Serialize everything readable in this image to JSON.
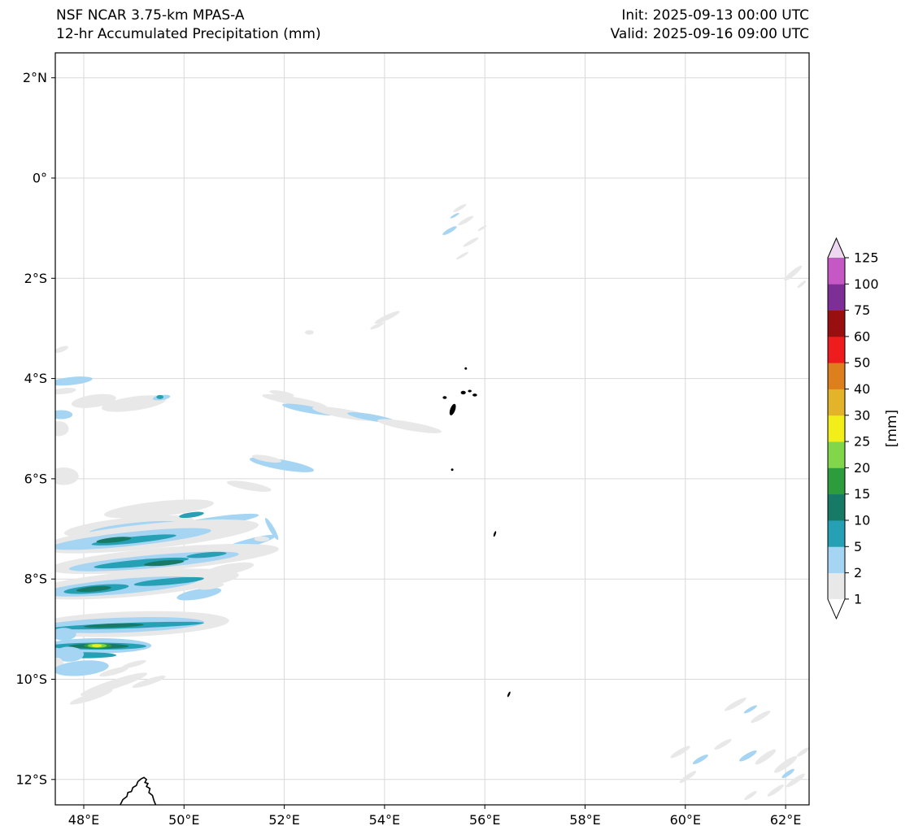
{
  "header": {
    "title_line1": "NSF NCAR 3.75-km MPAS-A",
    "title_line2": "12-hr Accumulated Precipitation (mm)",
    "init_label": "Init: 2025-09-13 00:00 UTC",
    "valid_label": "Valid: 2025-09-16 09:00 UTC"
  },
  "axes": {
    "x_ticks": [
      {
        "lon": 48,
        "label": "48°E"
      },
      {
        "lon": 50,
        "label": "50°E"
      },
      {
        "lon": 52,
        "label": "52°E"
      },
      {
        "lon": 54,
        "label": "54°E"
      },
      {
        "lon": 56,
        "label": "56°E"
      },
      {
        "lon": 58,
        "label": "58°E"
      },
      {
        "lon": 60,
        "label": "60°E"
      },
      {
        "lon": 62,
        "label": "62°E"
      }
    ],
    "y_ticks": [
      {
        "lat": 2,
        "label": "2°N"
      },
      {
        "lat": 0,
        "label": "0°"
      },
      {
        "lat": -2,
        "label": "2°S"
      },
      {
        "lat": -4,
        "label": "4°S"
      },
      {
        "lat": -6,
        "label": "6°S"
      },
      {
        "lat": -8,
        "label": "8°S"
      },
      {
        "lat": -10,
        "label": "10°S"
      },
      {
        "lat": -12,
        "label": "12°S"
      }
    ]
  },
  "colorbar": {
    "unit_label": "[mm]",
    "tick_labels": [
      "1",
      "2",
      "5",
      "10",
      "15",
      "20",
      "25",
      "30",
      "40",
      "50",
      "60",
      "75",
      "100",
      "125"
    ],
    "band_colors": [
      "#e8e8e8",
      "#a5d5f2",
      "#25a0b4",
      "#177a66",
      "#2c9c3c",
      "#81d64a",
      "#f2ee19",
      "#e3b32a",
      "#dd7f1d",
      "#ee1c1c",
      "#990f0f",
      "#7e2f96",
      "#c558c5"
    ],
    "under_color": "#ffffff",
    "over_color": "#eed7f2"
  },
  "chart_data": {
    "type": "heatmap",
    "subtype": "geographic filled-contour precipitation map",
    "title": "NSF NCAR 3.75-km MPAS-A — 12-hr Accumulated Precipitation (mm)",
    "model": "NSF NCAR 3.75-km MPAS-A",
    "variable": "12-hr Accumulated Precipitation",
    "units": "mm",
    "init_time": "2025-09-13 00:00 UTC",
    "valid_time": "2025-09-16 09:00 UTC",
    "lon_range_deg_east": [
      47.4,
      62.5
    ],
    "lat_range_deg": [
      -12.5,
      2.5
    ],
    "contour_levels_mm": [
      1,
      2,
      5,
      10,
      15,
      20,
      25,
      30,
      40,
      50,
      60,
      75,
      100,
      125
    ],
    "legend_position": "right vertical colorbar with pointed over/under extensions",
    "grid": true,
    "max_shaded_value_mm": 30,
    "summary": "Streaky NW–SE bands of light precipitation (1–10 mm) offshore of northern Madagascar between 47–53°E and 4–10°S, with embedded 10–15 mm teal cores and an isolated 25–30 mm maximum near 48.3°E, 9.3°S; scattered light showers near the Seychelles (55–56°E, 0.5–2°S), around 52–55°E 4.5–5°S, and in the far southeast corner (60–62.5°E, 10.5–12.5°S). Coastline of Madagascar's northern tip visible at bottom; small Seychelles islands near 55.5°E, 4.5°S."
  },
  "map": {
    "precip_blobs": [
      [
        47.75,
        -4.05,
        0.85,
        0.16,
        -6,
        1
      ],
      [
        47.6,
        -4.25,
        0.5,
        0.12,
        -6,
        0
      ],
      [
        48.2,
        -4.45,
        0.9,
        0.25,
        -8,
        0
      ],
      [
        49.0,
        -4.5,
        1.3,
        0.28,
        -8,
        0
      ],
      [
        49.55,
        -4.38,
        0.35,
        0.1,
        -8,
        1
      ],
      [
        49.52,
        -4.37,
        0.14,
        0.08,
        0,
        2
      ],
      [
        47.55,
        -4.72,
        0.45,
        0.18,
        0,
        1
      ],
      [
        47.5,
        -5.0,
        0.4,
        0.3,
        0,
        0
      ],
      [
        47.55,
        -3.42,
        0.3,
        0.1,
        -20,
        0
      ],
      [
        52.2,
        -4.45,
        1.3,
        0.16,
        10,
        0
      ],
      [
        52.5,
        -4.62,
        1.1,
        0.14,
        10,
        1
      ],
      [
        53.2,
        -4.7,
        1.3,
        0.18,
        10,
        0
      ],
      [
        53.75,
        -4.78,
        1.0,
        0.13,
        10,
        1
      ],
      [
        54.5,
        -4.95,
        1.3,
        0.17,
        10,
        0
      ],
      [
        51.95,
        -4.3,
        0.5,
        0.1,
        10,
        0
      ],
      [
        51.95,
        -5.72,
        1.3,
        0.2,
        10,
        1
      ],
      [
        51.65,
        -5.6,
        0.6,
        0.12,
        10,
        0
      ],
      [
        51.3,
        -6.15,
        0.9,
        0.16,
        10,
        0
      ],
      [
        47.6,
        -5.95,
        0.6,
        0.35,
        0,
        0
      ],
      [
        52.5,
        -3.08,
        0.18,
        0.09,
        0,
        0
      ],
      [
        54.05,
        -2.78,
        0.55,
        0.1,
        -25,
        0
      ],
      [
        53.85,
        -2.95,
        0.3,
        0.07,
        -25,
        0
      ],
      [
        49.5,
        -6.6,
        2.2,
        0.3,
        -6,
        0
      ],
      [
        48.9,
        -6.95,
        2.6,
        0.35,
        -6,
        0
      ],
      [
        49.0,
        -6.98,
        1.8,
        0.2,
        -6,
        1
      ],
      [
        50.6,
        -6.85,
        1.8,
        0.18,
        -8,
        1
      ],
      [
        50.15,
        -6.72,
        0.5,
        0.1,
        -8,
        2
      ],
      [
        50.9,
        -6.9,
        0.5,
        0.09,
        -8,
        2
      ],
      [
        49.3,
        -7.15,
        4.4,
        0.5,
        -6,
        0
      ],
      [
        48.95,
        -7.2,
        3.2,
        0.28,
        -6,
        1
      ],
      [
        49.0,
        -7.22,
        1.7,
        0.13,
        -6,
        2
      ],
      [
        48.6,
        -7.22,
        0.7,
        0.1,
        -6,
        3
      ],
      [
        51.3,
        -7.28,
        1.1,
        0.16,
        -15,
        1
      ],
      [
        51.75,
        -7.0,
        0.5,
        0.1,
        60,
        1
      ],
      [
        51.55,
        -7.2,
        0.3,
        0.1,
        0,
        0
      ],
      [
        49.6,
        -7.6,
        4.6,
        0.45,
        -5,
        0
      ],
      [
        49.4,
        -7.65,
        3.4,
        0.26,
        -5,
        1
      ],
      [
        49.15,
        -7.68,
        1.9,
        0.14,
        -5,
        2
      ],
      [
        49.6,
        -7.68,
        0.8,
        0.1,
        -5,
        3
      ],
      [
        50.45,
        -7.52,
        0.8,
        0.1,
        -5,
        2
      ],
      [
        50.9,
        -7.8,
        1.0,
        0.2,
        -10,
        0
      ],
      [
        49.0,
        -8.1,
        4.2,
        0.5,
        -5,
        0
      ],
      [
        48.75,
        -8.15,
        3.1,
        0.3,
        -5,
        1
      ],
      [
        48.25,
        -8.2,
        1.3,
        0.16,
        -5,
        2
      ],
      [
        48.2,
        -8.2,
        0.7,
        0.1,
        -5,
        3
      ],
      [
        49.7,
        -8.05,
        1.4,
        0.13,
        -5,
        2
      ],
      [
        50.3,
        -8.3,
        0.9,
        0.2,
        -10,
        1
      ],
      [
        50.55,
        -8.15,
        0.5,
        0.1,
        -10,
        0
      ],
      [
        48.9,
        -8.9,
        4.0,
        0.5,
        -2,
        0
      ],
      [
        48.75,
        -8.92,
        3.3,
        0.3,
        -2,
        1
      ],
      [
        48.9,
        -8.93,
        3.0,
        0.11,
        -2,
        2
      ],
      [
        48.6,
        -8.93,
        1.2,
        0.08,
        -2,
        3
      ],
      [
        47.6,
        -9.1,
        0.5,
        0.25,
        0,
        1
      ],
      [
        48.3,
        -9.33,
        2.1,
        0.3,
        0,
        1
      ],
      [
        48.3,
        -9.34,
        1.9,
        0.14,
        0,
        2
      ],
      [
        48.3,
        -9.34,
        1.2,
        0.1,
        0,
        3
      ],
      [
        48.28,
        -9.33,
        0.55,
        0.1,
        0,
        4
      ],
      [
        48.27,
        -9.33,
        0.38,
        0.08,
        0,
        5
      ],
      [
        48.26,
        -9.33,
        0.2,
        0.06,
        0,
        6
      ],
      [
        48.0,
        -9.52,
        1.3,
        0.12,
        0,
        2
      ],
      [
        47.7,
        -9.5,
        0.6,
        0.3,
        0,
        1
      ],
      [
        47.48,
        -9.72,
        0.25,
        0.3,
        0,
        0
      ],
      [
        47.95,
        -9.78,
        1.1,
        0.3,
        -5,
        1
      ],
      [
        48.6,
        -9.85,
        0.6,
        0.12,
        -15,
        0
      ],
      [
        48.6,
        -10.1,
        1.4,
        0.18,
        -18,
        0
      ],
      [
        48.15,
        -10.35,
        0.9,
        0.14,
        -18,
        0
      ],
      [
        49.3,
        -10.05,
        0.7,
        0.12,
        -18,
        0
      ],
      [
        49.0,
        -9.7,
        0.5,
        0.1,
        -15,
        0
      ],
      [
        55.5,
        -0.6,
        0.3,
        0.07,
        -30,
        0
      ],
      [
        55.62,
        -0.85,
        0.35,
        0.08,
        -30,
        0
      ],
      [
        55.3,
        -1.05,
        0.32,
        0.08,
        -30,
        1
      ],
      [
        55.72,
        -1.28,
        0.35,
        0.07,
        -30,
        0
      ],
      [
        55.55,
        -1.55,
        0.28,
        0.06,
        -30,
        0
      ],
      [
        55.95,
        -1.0,
        0.2,
        0.05,
        -30,
        0
      ],
      [
        55.4,
        -0.75,
        0.2,
        0.05,
        -30,
        1
      ],
      [
        62.15,
        -1.9,
        0.45,
        0.1,
        -40,
        0
      ],
      [
        62.32,
        -2.12,
        0.22,
        0.06,
        -40,
        0
      ],
      [
        61.0,
        -10.5,
        0.5,
        0.1,
        -30,
        0
      ],
      [
        61.5,
        -10.75,
        0.45,
        0.1,
        -30,
        0
      ],
      [
        61.3,
        -10.6,
        0.3,
        0.07,
        -30,
        1
      ],
      [
        59.9,
        -11.45,
        0.45,
        0.1,
        -30,
        0
      ],
      [
        60.3,
        -11.6,
        0.35,
        0.09,
        -30,
        1
      ],
      [
        60.75,
        -11.3,
        0.4,
        0.09,
        -30,
        0
      ],
      [
        61.25,
        -11.53,
        0.4,
        0.1,
        -30,
        1
      ],
      [
        61.6,
        -11.55,
        0.5,
        0.12,
        -35,
        0
      ],
      [
        62.0,
        -11.7,
        0.55,
        0.13,
        -35,
        0
      ],
      [
        62.05,
        -11.88,
        0.3,
        0.08,
        -35,
        1
      ],
      [
        62.2,
        -12.02,
        0.45,
        0.1,
        -35,
        0
      ],
      [
        61.8,
        -12.22,
        0.4,
        0.09,
        -35,
        0
      ],
      [
        60.05,
        -11.95,
        0.4,
        0.09,
        -35,
        0
      ],
      [
        61.3,
        -12.32,
        0.3,
        0.08,
        -35,
        0
      ],
      [
        62.35,
        -11.45,
        0.3,
        0.08,
        -35,
        0
      ]
    ],
    "coastline": [
      [
        48.72,
        -12.52
      ],
      [
        48.78,
        -12.4
      ],
      [
        48.86,
        -12.34
      ],
      [
        48.88,
        -12.26
      ],
      [
        48.95,
        -12.24
      ],
      [
        48.98,
        -12.16
      ],
      [
        49.05,
        -12.12
      ],
      [
        49.08,
        -12.04
      ],
      [
        49.14,
        -11.99
      ],
      [
        49.2,
        -11.96
      ],
      [
        49.25,
        -12.0
      ],
      [
        49.22,
        -12.06
      ],
      [
        49.28,
        -12.08
      ],
      [
        49.25,
        -12.14
      ],
      [
        49.32,
        -12.18
      ],
      [
        49.3,
        -12.26
      ],
      [
        49.37,
        -12.32
      ],
      [
        49.4,
        -12.42
      ],
      [
        49.44,
        -12.52
      ]
    ],
    "islands": [
      [
        55.36,
        -4.62,
        0.1,
        0.24,
        20
      ],
      [
        55.2,
        -4.38,
        0.08,
        0.06,
        0
      ],
      [
        55.57,
        -4.28,
        0.1,
        0.07,
        0
      ],
      [
        55.7,
        -4.25,
        0.07,
        0.05,
        0
      ],
      [
        55.8,
        -4.33,
        0.09,
        0.06,
        0
      ],
      [
        55.62,
        -3.8,
        0.05,
        0.05,
        0
      ],
      [
        55.35,
        -5.82,
        0.05,
        0.05,
        0
      ],
      [
        56.2,
        -7.1,
        0.04,
        0.12,
        20
      ],
      [
        56.48,
        -10.3,
        0.04,
        0.12,
        25
      ]
    ]
  }
}
